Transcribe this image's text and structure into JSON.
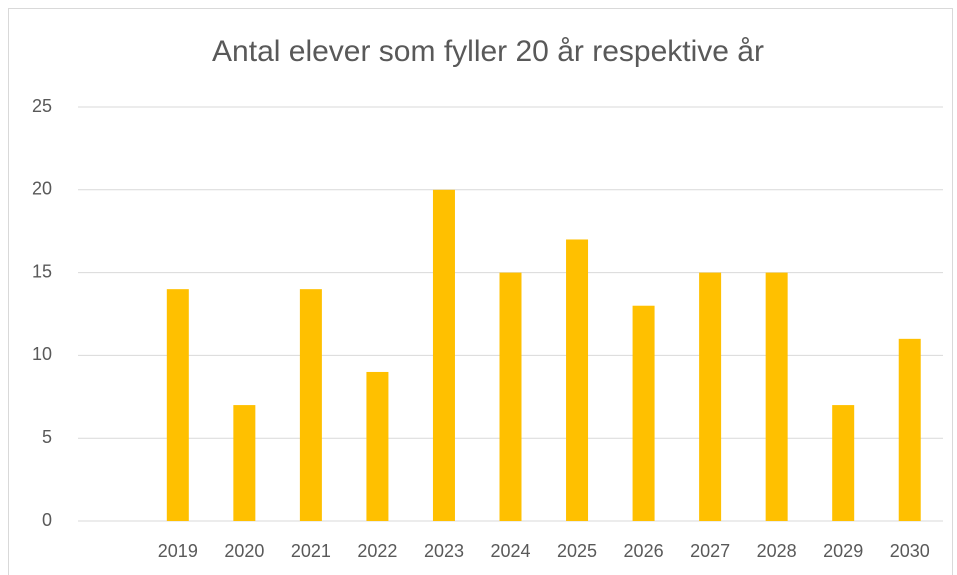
{
  "chart_data": {
    "type": "bar",
    "title": "Antal elever som fyller 20 år respektive år",
    "categories": [
      null,
      "2019",
      "2020",
      "2021",
      "2022",
      "2023",
      "2024",
      "2025",
      "2026",
      "2027",
      "2028",
      "2029",
      "2030"
    ],
    "values": [
      null,
      14,
      7,
      14,
      9,
      20,
      15,
      17,
      13,
      15,
      15,
      7,
      11
    ],
    "color": "#ffc000",
    "ylim": [
      0,
      25
    ],
    "yticks": [
      0,
      5,
      10,
      15,
      20,
      25
    ],
    "grid": true
  }
}
